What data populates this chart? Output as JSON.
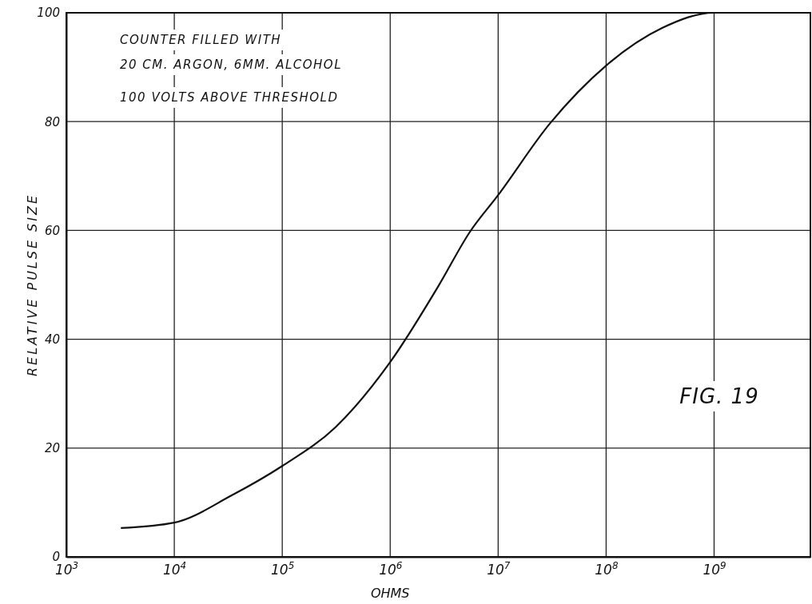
{
  "chart_data": {
    "type": "line",
    "xlabel": "OHMS",
    "ylabel": "RELATIVE PULSE SIZE",
    "log": "x",
    "x": [
      3200,
      10000,
      34000,
      100000,
      310000,
      1000000,
      2800000,
      5500000,
      10000000,
      30000000,
      100000000,
      330000000,
      1000000000,
      7000000000
    ],
    "series": [
      {
        "color": "#111111",
        "values": [
          5.3,
          6.3,
          11.3,
          16.7,
          23.8,
          35.8,
          49.8,
          59.8,
          66.5,
          79.6,
          90.3,
          97.2,
          100,
          100
        ]
      }
    ],
    "xlim": [
      1000,
      7800000000
    ],
    "xticks": [
      {
        "value": 1000,
        "label": "10$^{3}$"
      },
      {
        "value": 10000,
        "label": "10$^{4}$"
      },
      {
        "value": 100000,
        "label": "10$^{5}$"
      },
      {
        "value": 1000000,
        "label": "10$^{6}$"
      },
      {
        "value": 10000000,
        "label": "10$^{7}$"
      },
      {
        "value": 100000000,
        "label": "10$^{8}$"
      },
      {
        "value": 1000000000,
        "label": "10$^{9}$"
      }
    ],
    "ylim": [
      0,
      100
    ],
    "yticks": [
      0,
      20,
      40,
      60,
      80,
      100
    ],
    "grid": true,
    "marker": "none",
    "line_style": "solid",
    "annotations": [
      "COUNTER FILLED WITH",
      "20 CM. ARGON, 6MM. ALCOHOL",
      "100 VOLTS ABOVE THRESHOLD",
      "FIG. 19"
    ]
  }
}
